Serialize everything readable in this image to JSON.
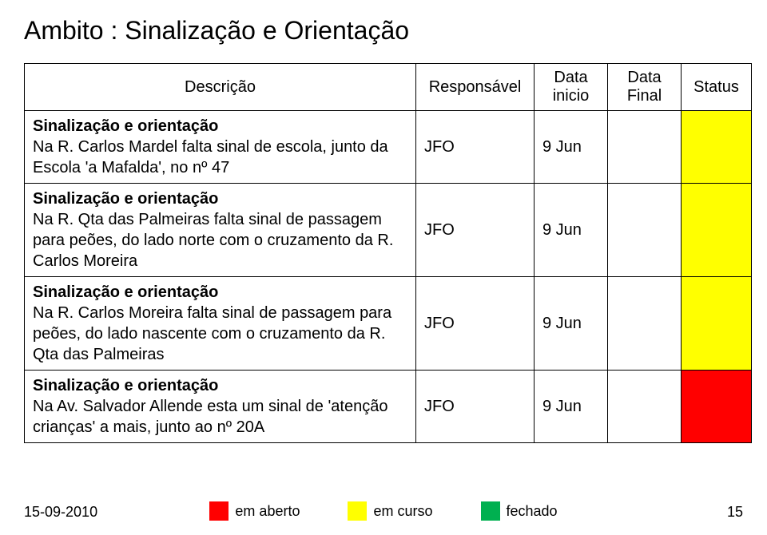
{
  "title": "Ambito : Sinalização e Orientação",
  "table": {
    "headers": {
      "desc": "Descrição",
      "resp": "Responsável",
      "inicio": "Data inicio",
      "final": "Data Final",
      "status": "Status"
    },
    "rows": [
      {
        "heading": "Sinalização e orientação",
        "body": "Na R. Carlos Mardel falta sinal de escola, junto da Escola 'a Mafalda', no nº 47",
        "resp": "JFO",
        "inicio": "9 Jun",
        "final": "",
        "status_color": "#ffff00"
      },
      {
        "heading": "Sinalização e orientação",
        "body": "Na R. Qta das Palmeiras falta sinal de passagem para peões, do lado norte com o cruzamento da R. Carlos Moreira",
        "resp": "JFO",
        "inicio": "9 Jun",
        "final": "",
        "status_color": "#ffff00"
      },
      {
        "heading": "Sinalização e orientação",
        "body": "Na R. Carlos Moreira falta sinal de passagem para peões, do lado nascente com o cruzamento da R. Qta das Palmeiras",
        "resp": "JFO",
        "inicio": "9 Jun",
        "final": "",
        "status_color": "#ffff00"
      },
      {
        "heading": "Sinalização e orientação",
        "body": "Na  Av. Salvador Allende esta um sinal de 'atenção crianças' a mais, junto ao  nº 20A",
        "resp": "JFO",
        "inicio": "9 Jun",
        "final": "",
        "status_color": "#ff0000"
      }
    ]
  },
  "legend": {
    "aberto": {
      "label": "em aberto",
      "color": "#ff0000"
    },
    "curso": {
      "label": "em curso",
      "color": "#ffff00"
    },
    "fechado": {
      "label": "fechado",
      "color": "#00b050"
    }
  },
  "footer": {
    "date": "15-09-2010",
    "page": "15"
  },
  "colors": {
    "text": "#000000",
    "background": "#ffffff",
    "border": "#000000"
  }
}
